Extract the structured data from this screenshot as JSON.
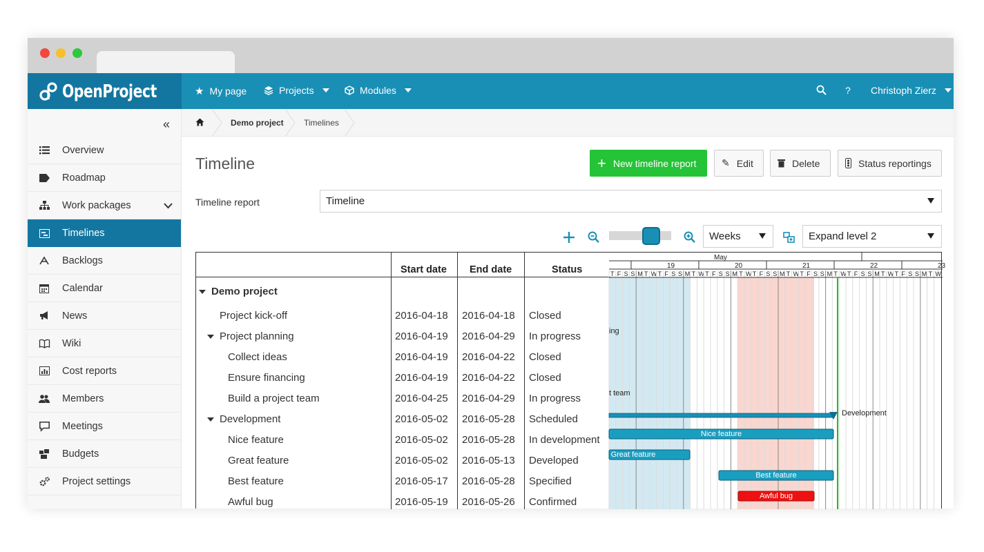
{
  "app": {
    "logo_text": "OpenProject"
  },
  "topnav": {
    "my_page": "My page",
    "projects": "Projects",
    "modules": "Modules",
    "help": "?",
    "user": "Christoph Zierz"
  },
  "sidebar": {
    "collapse": "«",
    "items": [
      {
        "label": "Overview",
        "icon": "list-icon"
      },
      {
        "label": "Roadmap",
        "icon": "tag-icon"
      },
      {
        "label": "Work packages",
        "icon": "hierarchy-icon"
      },
      {
        "label": "Timelines",
        "icon": "timeline-icon",
        "active": true
      },
      {
        "label": "Backlogs",
        "icon": "backlogs-icon"
      },
      {
        "label": "Calendar",
        "icon": "calendar-icon"
      },
      {
        "label": "News",
        "icon": "megaphone-icon"
      },
      {
        "label": "Wiki",
        "icon": "book-icon"
      },
      {
        "label": "Cost reports",
        "icon": "cost-report-icon"
      },
      {
        "label": "Members",
        "icon": "members-icon"
      },
      {
        "label": "Meetings",
        "icon": "speech-bubble-icon"
      },
      {
        "label": "Budgets",
        "icon": "budget-icon"
      },
      {
        "label": "Project settings",
        "icon": "gears-icon"
      }
    ]
  },
  "breadcrumb": {
    "project": "Demo project",
    "current": "Timelines"
  },
  "page": {
    "title": "Timeline",
    "new_button": "New timeline report",
    "edit_button": "Edit",
    "delete_button": "Delete",
    "status_button": "Status reportings",
    "report_label": "Timeline report",
    "report_value": "Timeline",
    "scale_value": "Weeks",
    "expand_value": "Expand level 2"
  },
  "table": {
    "headers": {
      "start": "Start date",
      "end": "End date",
      "status": "Status"
    },
    "rows": [
      {
        "name": "Demo project",
        "level": 0,
        "expanded": true,
        "bold": true,
        "start": "",
        "end": "",
        "status": ""
      },
      {
        "name": "Project kick-off",
        "level": 1,
        "start": "2016-04-18",
        "end": "2016-04-18",
        "status": "Closed"
      },
      {
        "name": "Project planning",
        "level": 1,
        "expanded": true,
        "start": "2016-04-19",
        "end": "2016-04-29",
        "status": "In progress"
      },
      {
        "name": "Collect ideas",
        "level": 2,
        "start": "2016-04-19",
        "end": "2016-04-22",
        "status": "Closed"
      },
      {
        "name": "Ensure financing",
        "level": 2,
        "start": "2016-04-19",
        "end": "2016-04-22",
        "status": "Closed"
      },
      {
        "name": "Build a project team",
        "level": 2,
        "start": "2016-04-25",
        "end": "2016-04-29",
        "status": "In progress"
      },
      {
        "name": "Development",
        "level": 1,
        "expanded": true,
        "start": "2016-05-02",
        "end": "2016-05-28",
        "status": "Scheduled"
      },
      {
        "name": "Nice feature",
        "level": 2,
        "start": "2016-05-02",
        "end": "2016-05-28",
        "status": "In development"
      },
      {
        "name": "Great feature",
        "level": 2,
        "start": "2016-05-02",
        "end": "2016-05-13",
        "status": "Developed"
      },
      {
        "name": "Best feature",
        "level": 2,
        "start": "2016-05-17",
        "end": "2016-05-28",
        "status": "Specified"
      },
      {
        "name": "Awful bug",
        "level": 2,
        "start": "2016-05-19",
        "end": "2016-05-26",
        "status": "Confirmed"
      }
    ]
  },
  "gantt": {
    "month": "May",
    "weeks": [
      "19",
      "20",
      "21",
      "22",
      "23"
    ],
    "day_letters": [
      "T",
      "F",
      "S",
      "S",
      "M",
      "T",
      "W",
      "T",
      "F",
      "S",
      "S",
      "M",
      "T",
      "W",
      "T",
      "F",
      "S",
      "S",
      "M",
      "T",
      "W",
      "T",
      "F",
      "S",
      "S",
      "M",
      "T",
      "W",
      "T",
      "F",
      "S",
      "S",
      "M",
      "T",
      "W",
      "T",
      "F",
      "S",
      "S",
      "M",
      "T",
      "W",
      "T",
      "F",
      "S",
      "S",
      "M",
      "T",
      "W"
    ],
    "labels": {
      "planning_tail": "ing",
      "team_tail": "t team",
      "development": "Development",
      "nice": "Nice feature",
      "great": "Great feature",
      "best": "Best feature",
      "bug": "Awful bug"
    },
    "colors": {
      "bar": "#1a9ec0",
      "bug": "#ee1111",
      "blue_band": "#d3e9f2",
      "red_band": "#f9d6cf",
      "today": "#22bb22"
    }
  }
}
